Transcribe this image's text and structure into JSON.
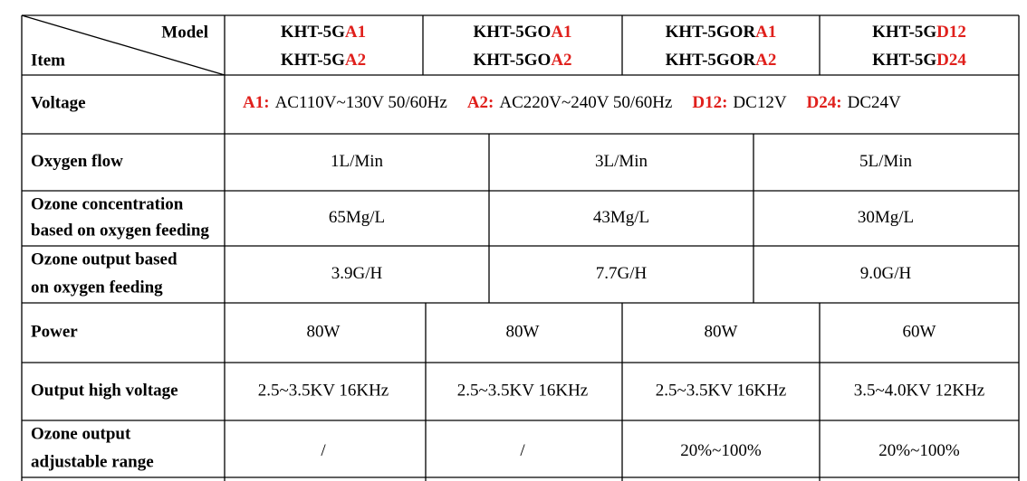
{
  "header": {
    "model_label": "Model",
    "item_label": "Item",
    "models": [
      [
        {
          "base": "KHT-5G",
          "suffix": "A1"
        },
        {
          "base": "KHT-5G",
          "suffix": "A2"
        }
      ],
      [
        {
          "base": "KHT-5GO",
          "suffix": "A1"
        },
        {
          "base": "KHT-5GO",
          "suffix": "A2"
        }
      ],
      [
        {
          "base": "KHT-5GOR",
          "suffix": "A1"
        },
        {
          "base": "KHT-5GOR",
          "suffix": "A2"
        }
      ],
      [
        {
          "base": "KHT-5G",
          "suffix": "D12"
        },
        {
          "base": "KHT-5G",
          "suffix": "D24"
        }
      ]
    ]
  },
  "voltage": {
    "label": "Voltage",
    "parts": [
      {
        "code": "A1:",
        "text": "AC110V~130V 50/60Hz"
      },
      {
        "code": "A2:",
        "text": "AC220V~240V 50/60Hz"
      },
      {
        "code": "D12:",
        "text": "DC12V"
      },
      {
        "code": "D24:",
        "text": "DC24V"
      }
    ]
  },
  "rows": [
    {
      "label": [
        "Oxygen flow"
      ],
      "values": [
        "1L/Min",
        "3L/Min",
        "5L/Min"
      ]
    },
    {
      "label": [
        "Ozone concentration",
        "based on oxygen feeding"
      ],
      "values": [
        "65Mg/L",
        "43Mg/L",
        "30Mg/L"
      ]
    },
    {
      "label": [
        "Ozone  output  based",
        "on oxygen feeding"
      ],
      "values": [
        "3.9G/H",
        "7.7G/H",
        "9.0G/H"
      ]
    },
    {
      "label": [
        "Power"
      ],
      "values": [
        "80W",
        "80W",
        "80W",
        "60W"
      ]
    },
    {
      "label": [
        "Output high voltage"
      ],
      "values": [
        "2.5~3.5KV 16KHz",
        "2.5~3.5KV 16KHz",
        "2.5~3.5KV 16KHz",
        "3.5~4.0KV 12KHz"
      ]
    },
    {
      "label": [
        "Ozone output",
        "adjustable range"
      ],
      "values": [
        "/",
        "/",
        "20%~100%",
        "20%~100%"
      ]
    }
  ]
}
